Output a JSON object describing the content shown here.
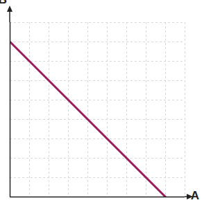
{
  "chart_data": {
    "type": "line",
    "x_label": "A",
    "y_label": "B",
    "x": [
      0,
      8
    ],
    "values": [
      8,
      0
    ],
    "color": "#9b1b5a",
    "xlim": [
      0,
      9
    ],
    "ylim": [
      0,
      9
    ],
    "xticks": [
      0,
      1,
      2,
      3,
      4,
      5,
      6,
      7,
      8,
      9
    ],
    "yticks": [
      0,
      1,
      2,
      3,
      4,
      5,
      6,
      7,
      8,
      9
    ],
    "grid": true,
    "tick_labels": false
  }
}
